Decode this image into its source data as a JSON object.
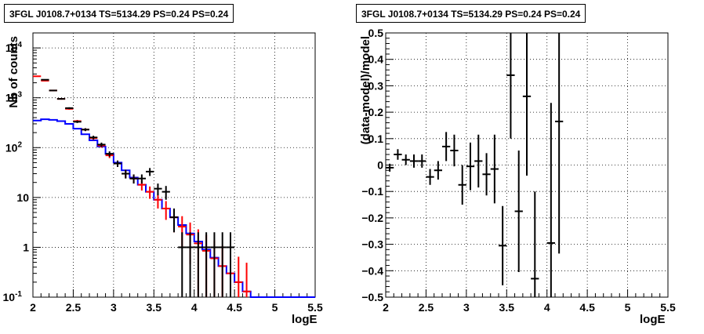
{
  "chart_data": [
    {
      "type": "line",
      "title": "3FGL J0108.7+0134 TS=5134.29 PS=0.24 PS=0.24",
      "xlabel": "logE",
      "ylabel": "Nb of counts",
      "xlim": [
        2,
        5.5
      ],
      "ylim": [
        0.1,
        20000
      ],
      "yscale": "log",
      "grid": true,
      "x_ticks": [
        "2",
        "2.5",
        "3",
        "3.5",
        "4",
        "4.5",
        "5",
        "5.5"
      ],
      "y_ticks": [
        {
          "value": 0.1,
          "label": "10",
          "exp": "-1"
        },
        {
          "value": 1,
          "label": "1",
          "exp": ""
        },
        {
          "value": 10,
          "label": "10",
          "exp": ""
        },
        {
          "value": 100,
          "label": "10",
          "exp": "2"
        },
        {
          "value": 1000,
          "label": "10",
          "exp": "3"
        },
        {
          "value": 10000,
          "label": "10",
          "exp": "4"
        }
      ],
      "bin_edges": [
        2.0,
        2.1,
        2.2,
        2.3,
        2.4,
        2.5,
        2.6,
        2.7,
        2.8,
        2.9,
        3.0,
        3.1,
        3.2,
        3.3,
        3.4,
        3.5,
        3.6,
        3.7,
        3.8,
        3.9,
        4.0,
        4.1,
        4.2,
        4.3,
        4.4,
        4.5,
        4.6,
        4.7,
        4.8,
        4.9,
        5.0,
        5.1,
        5.2,
        5.3,
        5.4,
        5.5
      ],
      "series": [
        {
          "role": "data",
          "color": "#000000",
          "x": [
            2.15,
            2.25,
            2.35,
            2.45,
            2.55,
            2.65,
            2.75,
            2.85,
            2.95,
            3.05,
            3.15,
            3.25,
            3.35,
            3.45,
            3.55,
            3.65,
            3.75,
            3.85,
            3.95,
            4.05,
            4.15,
            4.25,
            4.35,
            4.45
          ],
          "y": [
            2300,
            1400,
            950,
            620,
            330,
            230,
            160,
            115,
            75,
            48,
            30,
            24,
            24,
            33,
            15,
            13,
            4,
            1,
            1,
            1,
            1,
            1,
            1,
            1
          ],
          "yerr": [
            50,
            37,
            31,
            25,
            18,
            15,
            13,
            11,
            9,
            7,
            6,
            5,
            5,
            6,
            4,
            4,
            2,
            1,
            1,
            1,
            1,
            1,
            1,
            1
          ]
        },
        {
          "role": "total-model",
          "color": "#ff0000",
          "x": [
            2.05,
            2.15,
            2.25,
            2.35,
            2.45,
            2.55,
            2.65,
            2.75,
            2.85,
            2.95,
            3.05,
            3.15,
            3.25,
            3.35,
            3.45,
            3.55,
            3.65,
            3.75,
            3.85,
            3.95,
            4.05,
            4.15,
            4.25,
            4.35,
            4.45,
            4.55,
            4.65
          ],
          "y": [
            2700,
            2200,
            1400,
            950,
            600,
            340,
            230,
            155,
            110,
            70,
            48,
            30,
            24,
            18,
            13,
            9,
            6,
            4,
            2.6,
            1.8,
            1.2,
            0.85,
            0.6,
            0.42,
            0.3,
            0.2,
            0.13
          ]
        },
        {
          "role": "source-model",
          "color": "#0000ff",
          "y": [
            350,
            370,
            360,
            340,
            300,
            240,
            185,
            140,
            105,
            75,
            50,
            35,
            25,
            18,
            13,
            9,
            6,
            4,
            2.8,
            1.9,
            1.3,
            0.9,
            0.62,
            0.42,
            0.3,
            0.2,
            0.13,
            0.1,
            0.1,
            0.1,
            0.1,
            0.1,
            0.1,
            0.1,
            0.1
          ]
        }
      ]
    },
    {
      "type": "scatter",
      "title": "3FGL J0108.7+0134 TS=5134.29 PS=0.24 PS=0.24",
      "xlabel": "logE",
      "ylabel": "(data-model)/model",
      "xlim": [
        2,
        5.5
      ],
      "ylim": [
        -0.5,
        0.5
      ],
      "grid": true,
      "x_ticks": [
        "2",
        "2.5",
        "3",
        "3.5",
        "4",
        "4.5",
        "5",
        "5.5"
      ],
      "y_ticks": [
        "-0.5",
        "-0.4",
        "-0.3",
        "-0.2",
        "-0.1",
        "0",
        "0.1",
        "0.2",
        "0.3",
        "0.4",
        "0.5"
      ],
      "series": [
        {
          "role": "residuals",
          "color": "#000000",
          "x": [
            2.05,
            2.15,
            2.25,
            2.35,
            2.45,
            2.55,
            2.65,
            2.75,
            2.85,
            2.95,
            3.05,
            3.15,
            3.25,
            3.35,
            3.45,
            3.55,
            3.65,
            3.75,
            3.85,
            4.05,
            4.15
          ],
          "y": [
            -0.01,
            0.04,
            0.02,
            0.015,
            0.015,
            -0.045,
            -0.02,
            0.07,
            0.055,
            -0.075,
            -0.005,
            0.015,
            -0.035,
            -0.015,
            -0.305,
            0.34,
            -0.175,
            0.26,
            -0.43,
            -0.295,
            0.165
          ],
          "yerr": [
            0.015,
            0.02,
            0.02,
            0.025,
            0.025,
            0.03,
            0.035,
            0.055,
            0.06,
            0.075,
            0.09,
            0.1,
            0.08,
            0.13,
            0.15,
            0.24,
            0.23,
            0.3,
            0.33,
            0.53,
            0.5
          ]
        }
      ]
    }
  ]
}
